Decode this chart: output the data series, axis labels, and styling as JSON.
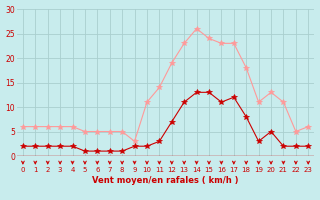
{
  "hours": [
    0,
    1,
    2,
    3,
    4,
    5,
    6,
    7,
    8,
    9,
    10,
    11,
    12,
    13,
    14,
    15,
    16,
    17,
    18,
    19,
    20,
    21,
    22,
    23
  ],
  "wind_avg": [
    2,
    2,
    2,
    2,
    2,
    1,
    1,
    1,
    1,
    2,
    2,
    3,
    7,
    11,
    13,
    13,
    11,
    12,
    8,
    3,
    5,
    2,
    2,
    2
  ],
  "wind_gust": [
    6,
    6,
    6,
    6,
    6,
    5,
    5,
    5,
    5,
    3,
    11,
    14,
    19,
    23,
    26,
    24,
    23,
    23,
    18,
    11,
    13,
    11,
    5,
    6
  ],
  "bg_color": "#c8eced",
  "grid_color": "#aacfcf",
  "line_avg_color": "#cc0000",
  "line_gust_color": "#ff9999",
  "xlabel": "Vent moyen/en rafales ( km/h )",
  "ylim": [
    0,
    30
  ],
  "yticks": [
    0,
    5,
    10,
    15,
    20,
    25,
    30
  ],
  "xlim": [
    -0.5,
    23.5
  ],
  "xlabel_color": "#cc0000",
  "tick_color": "#cc0000",
  "arrow_color": "#cc0000",
  "hline_color": "#cc0000"
}
